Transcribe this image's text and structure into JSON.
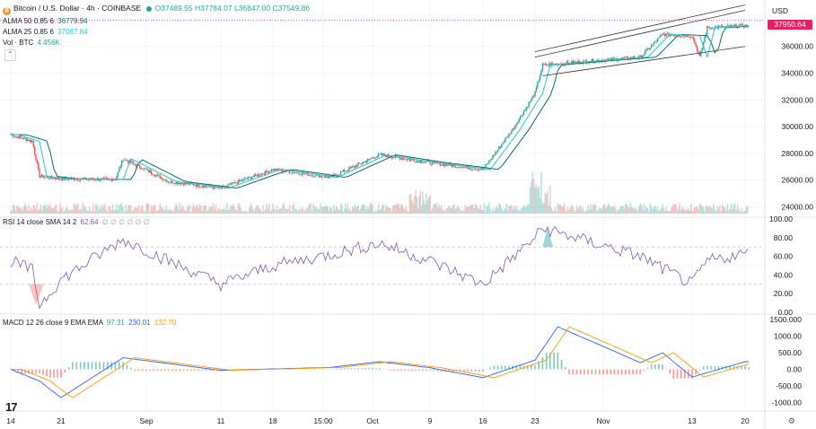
{
  "legend": {
    "symbol": "Bitcoin / U.S. Dollar · 4h · COINBASE",
    "ohlc": "O37489.55 H37784.07 L36847.00 C37549.86",
    "alma50_label": "ALMA 50 0.85 6",
    "alma50_value": "36779.94",
    "alma25_label": "ALMA 25 0.85 6",
    "alma25_value": "37067.84",
    "vol_label": "Vol · BTC",
    "vol_value": "4.456K",
    "rsi_label": "RSI 14 close SMA 14 2",
    "rsi_value": "62.64",
    "rsi_na": "∅ ∅ ∅ ∅ ∅ ∅",
    "macd_label": "MACD 12 26 close 9 EMA EMA",
    "macd_hist": "97.31",
    "macd_line": "230.01",
    "macd_signal": "132.70"
  },
  "price_axis": {
    "currency": "USD",
    "last_price": "37950.64",
    "ticks": [
      "36000.00",
      "34000.00",
      "32000.00",
      "30000.00",
      "28000.00",
      "26000.00",
      "24000.00"
    ]
  },
  "rsi_axis": {
    "ticks": [
      "100.00",
      "80.00",
      "60.00",
      "40.00",
      "20.00",
      "0.00"
    ]
  },
  "macd_axis": {
    "ticks": [
      "1500.000",
      "1000.00",
      "500.00",
      "0.00",
      "-500.00",
      "-1000.00"
    ]
  },
  "x_axis": {
    "ticks": [
      "14",
      "21",
      "Sep",
      "11",
      "18",
      "15:00",
      "Oct",
      "9",
      "16",
      "23",
      "Nov",
      "13",
      "20"
    ]
  },
  "branding": {
    "logo": "17"
  },
  "colors": {
    "up": "#26a69a",
    "down": "#ef5350",
    "alma50": "#0d6a5d",
    "alma25": "#26c6da",
    "rsi": "#7e57c2",
    "macd": "#2962ff",
    "signal": "#ff9800",
    "tag": "#e91e63"
  },
  "chart_data": [
    {
      "type": "line",
      "panel": "price (candlestick)",
      "x": [
        "Aug 14",
        "Aug 17",
        "Aug 18",
        "Aug 21",
        "Aug 28",
        "Aug 29",
        "Sep 4",
        "Sep 11",
        "Sep 18",
        "Sep 25",
        "Oct 2",
        "Oct 9",
        "Oct 16",
        "Oct 20",
        "Oct 23",
        "Oct 24",
        "Oct 30",
        "Nov 6",
        "Nov 9",
        "Nov 13",
        "Nov 14",
        "Nov 15",
        "Nov 20"
      ],
      "series": [
        {
          "values": [
            29400,
            28900,
            26300,
            26100,
            26050,
            27600,
            25900,
            25400,
            26800,
            26200,
            27900,
            27300,
            26800,
            29800,
            32500,
            34600,
            34900,
            35200,
            36900,
            36800,
            35200,
            37400,
            37550
          ]
        }
      ],
      "channel": {
        "upper": [
          [
            35200,
            "Oct 23"
          ],
          [
            38700,
            "Nov 20"
          ]
        ],
        "lower": [
          [
            33800,
            "Oct 24"
          ],
          [
            36000,
            "Nov 20"
          ]
        ]
      },
      "ylim": [
        23500,
        38800
      ]
    },
    {
      "type": "line",
      "panel": "RSI",
      "x": [
        "Aug 14",
        "Aug 17",
        "Aug 18",
        "Aug 21",
        "Aug 29",
        "Sep 4",
        "Sep 11",
        "Sep 18",
        "Oct 2",
        "Oct 9",
        "Oct 16",
        "Oct 23",
        "Oct 24",
        "Nov 6",
        "Nov 13",
        "Nov 15",
        "Nov 20"
      ],
      "series": [
        {
          "values": [
            55,
            45,
            8,
            35,
            78,
            55,
            30,
            50,
            74,
            55,
            30,
            80,
            90,
            60,
            30,
            55,
            63
          ]
        }
      ],
      "bands": [
        30,
        70
      ],
      "ylim": [
        0,
        100
      ]
    },
    {
      "type": "line",
      "panel": "MACD",
      "x": [
        "Aug 14",
        "Aug 18",
        "Aug 21",
        "Aug 29",
        "Sep 11",
        "Sep 25",
        "Oct 2",
        "Oct 9",
        "Oct 16",
        "Oct 23",
        "Oct 26",
        "Nov 6",
        "Nov 9",
        "Nov 13",
        "Nov 20"
      ],
      "series": [
        {
          "values": [
            0,
            -350,
            -850,
            350,
            -30,
            60,
            230,
            50,
            -250,
            280,
            1280,
            200,
            500,
            -230,
            230
          ]
        }
      ],
      "ylim": [
        -1200,
        1500
      ]
    }
  ]
}
